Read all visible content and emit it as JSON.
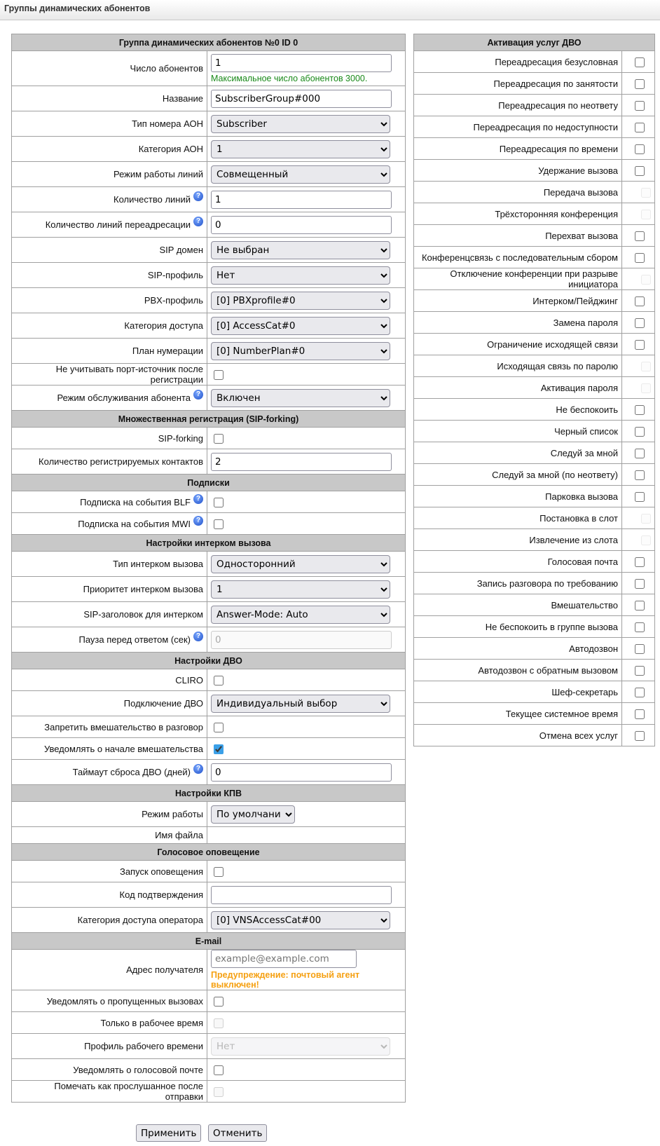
{
  "page_title": "Группы динамических абонентов",
  "left": {
    "title": "Группа динамических абонентов №0 ID 0",
    "rows": [
      {
        "t": "input",
        "label": "Число абонентов",
        "value": "1",
        "hint": "Максимальное число абонентов 3000."
      },
      {
        "t": "input",
        "label": "Название",
        "value": "SubscriberGroup#000"
      },
      {
        "t": "select",
        "label": "Тип номера АОН",
        "value": "Subscriber"
      },
      {
        "t": "select",
        "label": "Категория АОН",
        "value": "1"
      },
      {
        "t": "select",
        "label": "Режим работы линий",
        "value": "Совмещенный"
      },
      {
        "t": "input",
        "label": "Количество линий",
        "value": "1",
        "help": true
      },
      {
        "t": "input",
        "label": "Количество линий переадресации",
        "value": "0",
        "help": true
      },
      {
        "t": "select",
        "label": "SIP домен",
        "value": "Не выбран"
      },
      {
        "t": "select",
        "label": "SIP-профиль",
        "value": "Нет"
      },
      {
        "t": "select",
        "label": "PBX-профиль",
        "value": "[0] PBXprofile#0"
      },
      {
        "t": "select",
        "label": "Категория доступа",
        "value": "[0] AccessCat#0"
      },
      {
        "t": "select",
        "label": "План нумерации",
        "value": "[0] NumberPlan#0"
      },
      {
        "t": "check",
        "label": "Не учитывать порт-источник после регистрации",
        "checked": false
      },
      {
        "t": "select",
        "label": "Режим обслуживания абонента",
        "value": "Включен",
        "help": true
      },
      {
        "t": "header",
        "label": "Множественная регистрация (SIP-forking)"
      },
      {
        "t": "check",
        "label": "SIP-forking",
        "checked": false
      },
      {
        "t": "input",
        "label": "Количество регистрируемых контактов",
        "value": "2"
      },
      {
        "t": "header",
        "label": "Подписки"
      },
      {
        "t": "check",
        "label": "Подписка на события BLF",
        "checked": false,
        "help": true
      },
      {
        "t": "check",
        "label": "Подписка на события MWI",
        "checked": false,
        "help": true
      },
      {
        "t": "header",
        "label": "Настройки интерком вызова"
      },
      {
        "t": "select",
        "label": "Тип интерком вызова",
        "value": "Односторонний"
      },
      {
        "t": "select",
        "label": "Приоритет интерком вызова",
        "value": "1"
      },
      {
        "t": "select",
        "label": "SIP-заголовок для интерком",
        "value": "Answer-Mode: Auto"
      },
      {
        "t": "input",
        "label": "Пауза перед ответом (сек)",
        "value": "0",
        "help": true,
        "disabled": true
      },
      {
        "t": "header",
        "label": "Настройки ДВО"
      },
      {
        "t": "check",
        "label": "CLIRO",
        "checked": false
      },
      {
        "t": "select",
        "label": "Подключение ДВО",
        "value": "Индивидуальный выбор"
      },
      {
        "t": "check",
        "label": "Запретить вмешательство в разговор",
        "checked": false
      },
      {
        "t": "check",
        "label": "Уведомлять о начале вмешательства",
        "checked": true
      },
      {
        "t": "input",
        "label": "Таймаут сброса ДВО (дней)",
        "value": "0",
        "help": true
      },
      {
        "t": "header",
        "label": "Настройки КПВ"
      },
      {
        "t": "select",
        "label": "Режим работы",
        "value": "По умолчанию",
        "narrow": true
      },
      {
        "t": "empty",
        "label": "Имя файла"
      },
      {
        "t": "header",
        "label": "Голосовое оповещение"
      },
      {
        "t": "check",
        "label": "Запуск оповещения",
        "checked": false
      },
      {
        "t": "input",
        "label": "Код подтверждения",
        "value": ""
      },
      {
        "t": "select",
        "label": "Категория доступа оператора",
        "value": "[0] VNSAccessCat#00"
      },
      {
        "t": "header",
        "label": "E-mail"
      },
      {
        "t": "email",
        "label": "Адрес получателя",
        "value": "",
        "placeholder": "example@example.com",
        "warning": "Предупреждение: почтовый агент выключен!"
      },
      {
        "t": "check",
        "label": "Уведомлять о пропущенных вызовах",
        "checked": false
      },
      {
        "t": "check",
        "label": "Только в рабочее время",
        "checked": false,
        "disabled": true
      },
      {
        "t": "select",
        "label": "Профиль рабочего времени",
        "value": "Нет",
        "disabled": true
      },
      {
        "t": "check",
        "label": "Уведомлять о голосовой почте",
        "checked": false
      },
      {
        "t": "check",
        "label": "Помечать как прослушанное после отправки",
        "checked": false,
        "disabled": true
      }
    ]
  },
  "right": {
    "title": "Активация услуг ДВО",
    "items": [
      {
        "label": "Переадресация безусловная"
      },
      {
        "label": "Переадресация по занятости"
      },
      {
        "label": "Переадресация по неответу"
      },
      {
        "label": "Переадресация по недоступности"
      },
      {
        "label": "Переадресация по времени"
      },
      {
        "label": "Удержание вызова"
      },
      {
        "label": "Передача вызова",
        "disabled": true
      },
      {
        "label": "Трёхсторонняя конференция",
        "disabled": true
      },
      {
        "label": "Перехват вызова"
      },
      {
        "label": "Конференцсвязь с последовательным сбором"
      },
      {
        "label": "Отключение конференции при разрыве инициатора",
        "disabled": true
      },
      {
        "label": "Интерком/Пейджинг"
      },
      {
        "label": "Замена пароля"
      },
      {
        "label": "Ограничение исходящей связи"
      },
      {
        "label": "Исходящая связь по паролю",
        "disabled": true
      },
      {
        "label": "Активация пароля",
        "disabled": true
      },
      {
        "label": "Не беспокоить"
      },
      {
        "label": "Черный список"
      },
      {
        "label": "Следуй за мной"
      },
      {
        "label": "Следуй за мной (по неответу)"
      },
      {
        "label": "Парковка вызова"
      },
      {
        "label": "Постановка в слот",
        "disabled": true
      },
      {
        "label": "Извлечение из слота",
        "disabled": true
      },
      {
        "label": "Голосовая почта"
      },
      {
        "label": "Запись разговора по требованию"
      },
      {
        "label": "Вмешательство"
      },
      {
        "label": "Не беспокоить в группе вызова"
      },
      {
        "label": "Автодозвон"
      },
      {
        "label": "Автодозвон с обратным вызовом"
      },
      {
        "label": "Шеф-секретарь"
      },
      {
        "label": "Текущее системное время"
      },
      {
        "label": "Отмена всех услуг"
      }
    ]
  },
  "buttons": {
    "apply": "Применить",
    "cancel": "Отменить"
  },
  "colors": {
    "header_bg": "#c8c8c8",
    "hint": "#1a8a1a",
    "warning": "#f5a012",
    "checkbox_accent": "#3ba0e8"
  }
}
